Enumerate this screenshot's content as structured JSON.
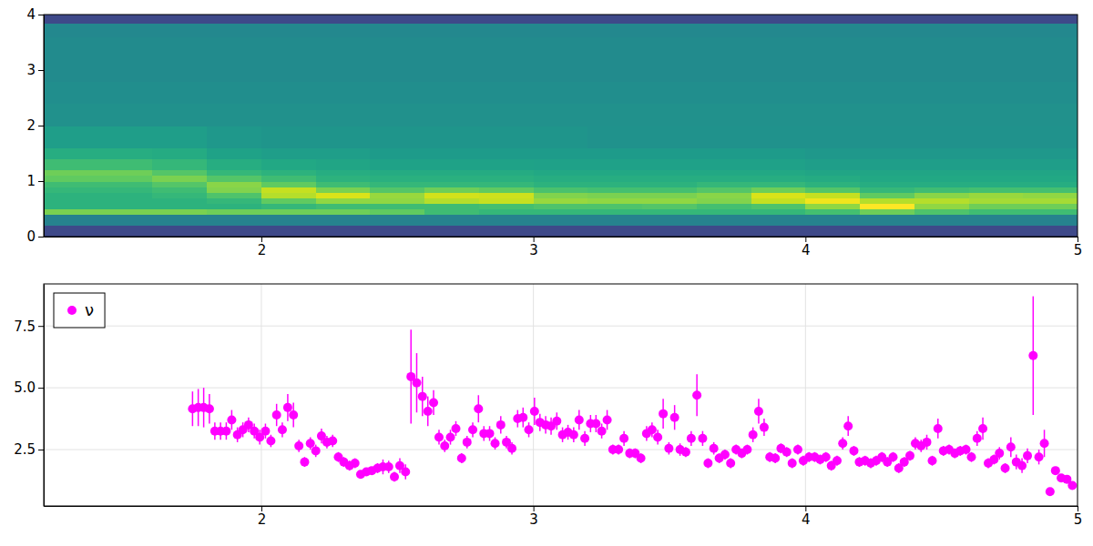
{
  "chart_data": [
    {
      "type": "heatmap",
      "color": "viridis",
      "xlim": [
        1.2,
        5
      ],
      "ylim": [
        0,
        4
      ],
      "xticks": [
        2,
        3,
        4,
        5
      ],
      "yticks": [
        0,
        1,
        2,
        3,
        4
      ],
      "zlim": [
        0,
        9
      ],
      "x_edges": [
        1.2,
        1.4,
        1.6,
        1.8,
        2.0,
        2.2,
        2.4,
        2.6,
        2.8,
        3.0,
        3.2,
        3.4,
        3.6,
        3.8,
        4.0,
        4.2,
        4.4,
        4.6,
        4.8,
        5.0
      ],
      "y_edges": [
        0,
        0.2,
        0.4,
        0.5,
        0.6,
        0.7,
        0.8,
        0.9,
        1.0,
        1.1,
        1.2,
        1.4,
        1.6,
        2.0,
        2.4,
        2.8,
        3.2,
        3.6,
        3.85,
        4.0
      ],
      "z": [
        [
          2.0,
          2.0,
          2.0,
          2.0,
          2.0,
          2.0,
          2.0,
          2.0,
          2.0,
          2.0,
          2.0,
          2.0,
          2.0,
          2.0,
          2.0,
          2.0,
          2.0,
          2.0,
          2.0
        ],
        [
          4.0,
          4.0,
          4.0,
          4.0,
          4.0,
          4.0,
          4.0,
          4.0,
          4.0,
          4.0,
          4.0,
          4.0,
          4.0,
          4.0,
          4.0,
          4.0,
          4.0,
          4.0,
          4.0
        ],
        [
          7.2,
          7.2,
          7.2,
          7.0,
          7.0,
          7.0,
          6.8,
          6.2,
          6.0,
          6.0,
          6.0,
          6.0,
          6.0,
          6.0,
          6.3,
          7.0,
          6.5,
          6.2,
          6.2
        ],
        [
          5.8,
          5.8,
          5.8,
          5.8,
          6.0,
          6.2,
          6.2,
          6.2,
          6.3,
          6.5,
          6.5,
          6.6,
          6.3,
          6.5,
          7.5,
          9.0,
          7.5,
          7.0,
          7.0
        ],
        [
          5.8,
          5.8,
          5.8,
          6.0,
          6.8,
          7.5,
          7.5,
          8.0,
          8.2,
          7.6,
          7.5,
          7.5,
          7.3,
          8.2,
          8.8,
          8.0,
          8.0,
          7.8,
          7.8
        ],
        [
          5.8,
          5.8,
          6.0,
          6.5,
          8.0,
          8.5,
          7.6,
          8.4,
          8.3,
          7.3,
          7.2,
          7.2,
          7.4,
          8.5,
          8.2,
          6.8,
          7.4,
          7.6,
          7.5
        ],
        [
          6.0,
          6.0,
          6.2,
          7.3,
          8.2,
          7.2,
          6.6,
          7.0,
          6.8,
          6.4,
          6.3,
          6.3,
          6.6,
          7.0,
          6.6,
          6.0,
          6.2,
          6.3,
          6.3
        ],
        [
          6.2,
          6.2,
          6.6,
          7.4,
          6.8,
          6.2,
          6.0,
          6.0,
          6.0,
          5.8,
          5.8,
          5.8,
          6.0,
          6.0,
          5.8,
          5.6,
          5.6,
          5.6,
          5.6
        ],
        [
          6.8,
          6.8,
          7.2,
          6.6,
          6.2,
          5.8,
          5.7,
          5.7,
          5.7,
          5.6,
          5.6,
          5.6,
          5.6,
          5.6,
          5.5,
          5.4,
          5.4,
          5.4,
          5.4
        ],
        [
          7.0,
          7.0,
          6.6,
          6.0,
          5.8,
          5.6,
          5.5,
          5.5,
          5.5,
          5.4,
          5.4,
          5.4,
          5.4,
          5.4,
          5.3,
          5.3,
          5.3,
          5.3,
          5.3
        ],
        [
          6.2,
          6.2,
          6.0,
          5.6,
          5.4,
          5.3,
          5.2,
          5.2,
          5.2,
          5.1,
          5.1,
          5.1,
          5.1,
          5.1,
          5.0,
          5.0,
          5.0,
          5.0,
          5.0
        ],
        [
          5.6,
          5.6,
          5.5,
          5.2,
          5.0,
          5.0,
          4.9,
          4.9,
          4.9,
          4.9,
          4.9,
          4.9,
          4.9,
          4.9,
          4.8,
          4.8,
          4.8,
          4.8,
          4.8
        ],
        [
          5.0,
          5.0,
          5.0,
          4.8,
          4.7,
          4.7,
          4.7,
          4.7,
          4.7,
          4.7,
          4.6,
          4.6,
          4.6,
          4.6,
          4.6,
          4.6,
          4.6,
          4.6,
          4.6
        ],
        [
          4.5,
          4.5,
          4.5,
          4.5,
          4.5,
          4.5,
          4.5,
          4.5,
          4.5,
          4.5,
          4.5,
          4.5,
          4.5,
          4.5,
          4.5,
          4.5,
          4.5,
          4.5,
          4.5
        ],
        [
          4.4,
          4.4,
          4.4,
          4.4,
          4.4,
          4.4,
          4.4,
          4.4,
          4.4,
          4.4,
          4.4,
          4.4,
          4.4,
          4.4,
          4.4,
          4.4,
          4.4,
          4.4,
          4.4
        ],
        [
          4.3,
          4.3,
          4.3,
          4.3,
          4.3,
          4.3,
          4.3,
          4.3,
          4.3,
          4.3,
          4.3,
          4.3,
          4.3,
          4.3,
          4.3,
          4.3,
          4.3,
          4.3,
          4.3
        ],
        [
          4.3,
          4.3,
          4.3,
          4.3,
          4.3,
          4.3,
          4.3,
          4.3,
          4.3,
          4.3,
          4.3,
          4.3,
          4.3,
          4.3,
          4.3,
          4.3,
          4.3,
          4.3,
          4.3
        ],
        [
          4.2,
          4.2,
          4.2,
          4.2,
          4.2,
          4.2,
          4.2,
          4.2,
          4.2,
          4.2,
          4.2,
          4.2,
          4.2,
          4.2,
          4.2,
          4.2,
          4.2,
          4.2,
          4.2
        ],
        [
          2.0,
          2.0,
          2.0,
          2.0,
          2.0,
          2.0,
          2.0,
          2.0,
          2.0,
          2.0,
          2.0,
          2.0,
          2.0,
          2.0,
          2.0,
          2.0,
          2.0,
          2.0,
          2.0
        ]
      ]
    },
    {
      "type": "scatter",
      "grid": true,
      "legend": "upper left",
      "xlim": [
        1.2,
        5
      ],
      "ylim": [
        0.22,
        9.2
      ],
      "xticks": [
        2,
        3,
        4,
        5
      ],
      "yticks": [
        2.5,
        {
          "value": 5,
          "label": "5.0"
        },
        7.5
      ],
      "series": [
        {
          "name": "ν",
          "color": "#ff00ff",
          "marker": "circle",
          "x": [
            1.747,
            1.768,
            1.788,
            1.809,
            1.829,
            1.85,
            1.871,
            1.891,
            1.912,
            1.932,
            1.953,
            1.974,
            1.994,
            2.015,
            2.035,
            2.056,
            2.077,
            2.097,
            2.118,
            2.138,
            2.159,
            2.18,
            2.2,
            2.221,
            2.241,
            2.262,
            2.283,
            2.303,
            2.324,
            2.344,
            2.365,
            2.386,
            2.406,
            2.427,
            2.447,
            2.468,
            2.489,
            2.509,
            2.53,
            2.55,
            2.571,
            2.592,
            2.612,
            2.633,
            2.653,
            2.674,
            2.695,
            2.715,
            2.736,
            2.756,
            2.777,
            2.798,
            2.818,
            2.839,
            2.859,
            2.88,
            2.901,
            2.921,
            2.942,
            2.962,
            2.983,
            3.004,
            3.024,
            3.045,
            3.065,
            3.086,
            3.107,
            3.127,
            3.148,
            3.168,
            3.189,
            3.21,
            3.23,
            3.251,
            3.271,
            3.292,
            3.313,
            3.333,
            3.354,
            3.374,
            3.395,
            3.416,
            3.436,
            3.457,
            3.477,
            3.498,
            3.519,
            3.539,
            3.56,
            3.58,
            3.601,
            3.622,
            3.642,
            3.663,
            3.683,
            3.704,
            3.725,
            3.745,
            3.766,
            3.786,
            3.807,
            3.828,
            3.848,
            3.869,
            3.889,
            3.91,
            3.931,
            3.951,
            3.972,
            3.992,
            4.013,
            4.034,
            4.054,
            4.075,
            4.095,
            4.116,
            4.137,
            4.157,
            4.178,
            4.198,
            4.219,
            4.24,
            4.26,
            4.281,
            4.301,
            4.322,
            4.343,
            4.363,
            4.384,
            4.404,
            4.425,
            4.446,
            4.466,
            4.487,
            4.507,
            4.528,
            4.549,
            4.569,
            4.59,
            4.61,
            4.631,
            4.652,
            4.672,
            4.693,
            4.713,
            4.734,
            4.755,
            4.775,
            4.796,
            4.816,
            4.837,
            4.858,
            4.878,
            4.899,
            4.919,
            4.94,
            4.961,
            4.981
          ],
          "values": [
            4.15,
            4.2,
            4.2,
            4.15,
            3.25,
            3.25,
            3.25,
            3.7,
            3.1,
            3.3,
            3.5,
            3.25,
            3.0,
            3.25,
            2.85,
            3.9,
            3.3,
            4.2,
            3.9,
            2.65,
            2.0,
            2.75,
            2.45,
            3.05,
            2.8,
            2.85,
            2.2,
            2.0,
            1.85,
            1.95,
            1.5,
            1.6,
            1.65,
            1.75,
            1.8,
            1.8,
            1.4,
            1.85,
            1.6,
            5.45,
            5.2,
            4.65,
            4.05,
            4.4,
            3.0,
            2.65,
            3.0,
            3.35,
            2.15,
            2.8,
            3.3,
            4.15,
            3.15,
            3.15,
            2.75,
            3.5,
            2.8,
            2.55,
            3.75,
            3.8,
            3.3,
            4.05,
            3.6,
            3.5,
            3.45,
            3.65,
            3.1,
            3.2,
            3.1,
            3.7,
            2.95,
            3.55,
            3.55,
            3.25,
            3.7,
            2.5,
            2.5,
            2.95,
            2.35,
            2.35,
            2.15,
            3.15,
            3.3,
            3.0,
            3.95,
            2.55,
            3.8,
            2.5,
            2.4,
            2.95,
            4.7,
            2.95,
            1.95,
            2.55,
            2.15,
            2.3,
            1.95,
            2.5,
            2.35,
            2.5,
            3.1,
            4.05,
            3.4,
            2.2,
            2.15,
            2.55,
            2.4,
            1.95,
            2.5,
            2.05,
            2.2,
            2.2,
            2.1,
            2.2,
            1.85,
            2.05,
            2.75,
            3.45,
            2.45,
            2.0,
            2.05,
            1.95,
            2.05,
            2.2,
            2.0,
            2.2,
            1.75,
            2.0,
            2.25,
            2.75,
            2.65,
            2.8,
            2.05,
            3.35,
            2.45,
            2.5,
            2.35,
            2.45,
            2.5,
            2.2,
            2.95,
            3.35,
            1.95,
            2.1,
            2.35,
            1.75,
            2.6,
            2.0,
            1.85,
            2.25,
            6.3,
            2.2,
            2.75,
            0.8,
            1.65,
            1.35,
            1.3,
            1.05
          ],
          "errors": [
            0.7,
            0.75,
            0.8,
            0.6,
            0.35,
            0.35,
            0.35,
            0.4,
            0.3,
            0.3,
            0.3,
            0.3,
            0.3,
            0.3,
            0.25,
            0.45,
            0.3,
            0.55,
            0.5,
            0.25,
            0.2,
            0.25,
            0.25,
            0.3,
            0.25,
            0.25,
            0.2,
            0.2,
            0.2,
            0.2,
            0.15,
            0.15,
            0.15,
            0.2,
            0.3,
            0.25,
            0.2,
            0.3,
            0.3,
            1.9,
            1.2,
            0.8,
            0.6,
            0.5,
            0.3,
            0.25,
            0.3,
            0.3,
            0.2,
            0.25,
            0.3,
            0.55,
            0.3,
            0.3,
            0.25,
            0.35,
            0.25,
            0.25,
            0.35,
            0.4,
            0.3,
            0.55,
            0.35,
            0.35,
            0.35,
            0.35,
            0.3,
            0.3,
            0.3,
            0.4,
            0.3,
            0.35,
            0.35,
            0.3,
            0.4,
            0.2,
            0.2,
            0.3,
            0.2,
            0.2,
            0.2,
            0.3,
            0.3,
            0.3,
            0.6,
            0.25,
            0.5,
            0.25,
            0.2,
            0.3,
            0.85,
            0.3,
            0.2,
            0.25,
            0.2,
            0.2,
            0.2,
            0.2,
            0.2,
            0.2,
            0.3,
            0.5,
            0.35,
            0.2,
            0.2,
            0.2,
            0.2,
            0.2,
            0.2,
            0.2,
            0.2,
            0.2,
            0.2,
            0.2,
            0.2,
            0.2,
            0.25,
            0.4,
            0.2,
            0.2,
            0.2,
            0.2,
            0.2,
            0.2,
            0.2,
            0.2,
            0.2,
            0.2,
            0.2,
            0.25,
            0.25,
            0.3,
            0.2,
            0.4,
            0.2,
            0.2,
            0.2,
            0.2,
            0.2,
            0.2,
            0.3,
            0.45,
            0.2,
            0.2,
            0.25,
            0.2,
            0.4,
            0.3,
            0.3,
            0.3,
            2.4,
            0.3,
            0.55,
            0.1,
            0.15,
            0.15,
            0.15,
            0.1
          ]
        }
      ]
    }
  ]
}
